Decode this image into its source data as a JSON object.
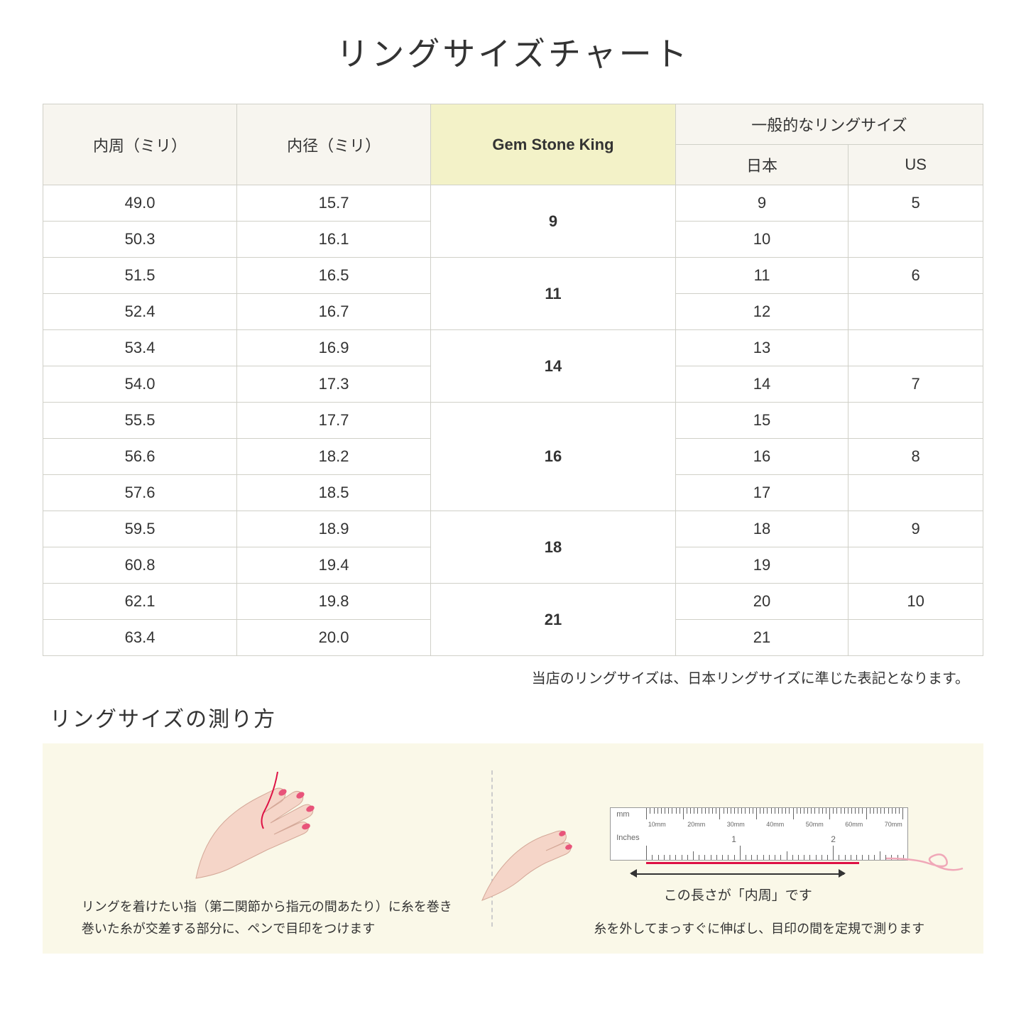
{
  "title": "リングサイズチャート",
  "headers": {
    "circumference": "内周（ミリ）",
    "diameter": "内径（ミリ）",
    "brand": "Gem Stone King",
    "general": "一般的なリングサイズ",
    "japan": "日本",
    "us": "US"
  },
  "rows": [
    {
      "circ": "49.0",
      "dia": "15.7",
      "gsk": "9",
      "gsk_span": 2,
      "jp": "9",
      "us": "5"
    },
    {
      "circ": "50.3",
      "dia": "16.1",
      "jp": "10",
      "us": ""
    },
    {
      "circ": "51.5",
      "dia": "16.5",
      "gsk": "11",
      "gsk_span": 2,
      "jp": "11",
      "us": "6"
    },
    {
      "circ": "52.4",
      "dia": "16.7",
      "jp": "12",
      "us": ""
    },
    {
      "circ": "53.4",
      "dia": "16.9",
      "gsk": "14",
      "gsk_span": 2,
      "jp": "13",
      "us": ""
    },
    {
      "circ": "54.0",
      "dia": "17.3",
      "jp": "14",
      "us": "7"
    },
    {
      "circ": "55.5",
      "dia": "17.7",
      "gsk": "16",
      "gsk_span": 3,
      "jp": "15",
      "us": ""
    },
    {
      "circ": "56.6",
      "dia": "18.2",
      "jp": "16",
      "us": "8"
    },
    {
      "circ": "57.6",
      "dia": "18.5",
      "jp": "17",
      "us": ""
    },
    {
      "circ": "59.5",
      "dia": "18.9",
      "gsk": "18",
      "gsk_span": 2,
      "jp": "18",
      "us": "9"
    },
    {
      "circ": "60.8",
      "dia": "19.4",
      "jp": "19",
      "us": ""
    },
    {
      "circ": "62.1",
      "dia": "19.8",
      "gsk": "21",
      "gsk_span": 2,
      "jp": "20",
      "us": "10"
    },
    {
      "circ": "63.4",
      "dia": "20.0",
      "jp": "21",
      "us": ""
    }
  ],
  "note": "当店のリングサイズは、日本リングサイズに準じた表記となります。",
  "subtitle": "リングサイズの測り方",
  "instruction1_line1": "リングを着けたい指（第二関節から指元の間あたり）に糸を巻き",
  "instruction1_line2": "巻いた糸が交差する部分に、ペンで目印をつけます",
  "instruction2": "糸を外してまっすぐに伸ばし、目印の間を定規で測ります",
  "arrow_label": "この長さが「内周」です",
  "ruler": {
    "mm_label": "mm",
    "inches_label": "Inches",
    "mm_marks": [
      "10mm",
      "20mm",
      "30mm",
      "40mm",
      "50mm",
      "60mm",
      "70mm"
    ]
  },
  "colors": {
    "header_bg": "#f7f5ef",
    "highlight_bg": "#f3f2c8",
    "border": "#d0d0c8",
    "instruction_bg": "#faf8e8",
    "skin": "#f5d5c8",
    "nail": "#e8547a",
    "string": "#d14"
  }
}
